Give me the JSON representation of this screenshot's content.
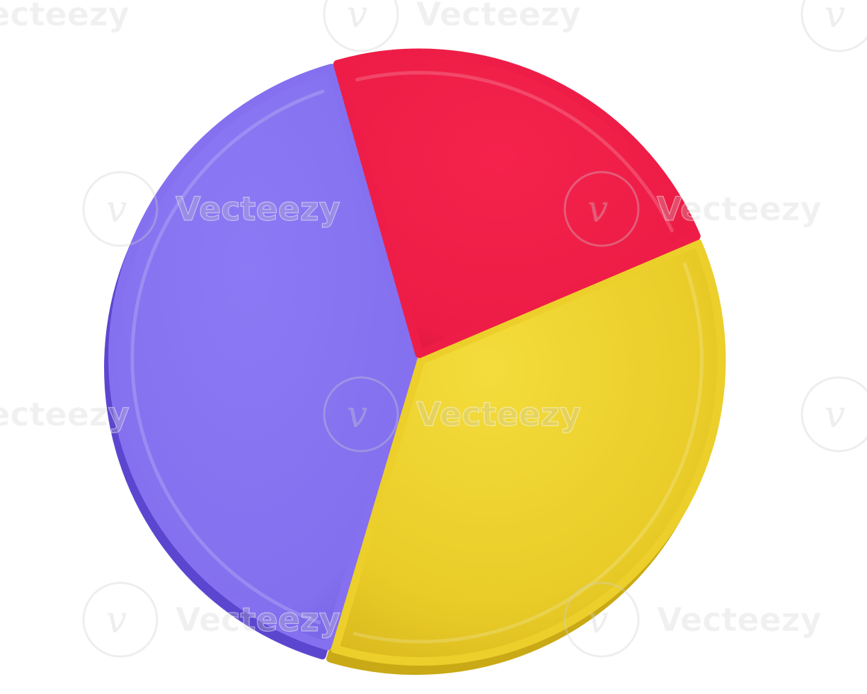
{
  "chart_data": {
    "type": "pie",
    "title": "",
    "slices": [
      {
        "value": 36,
        "color": "#eccf2b"
      },
      {
        "value": 41,
        "color": "#8570ef"
      },
      {
        "value": 23,
        "color": "#ee1d47"
      }
    ],
    "legend": "none",
    "style": "3d-rendered"
  },
  "watermark": {
    "text": "Vecteezy",
    "icon": "vecteezy-logo-icon"
  }
}
